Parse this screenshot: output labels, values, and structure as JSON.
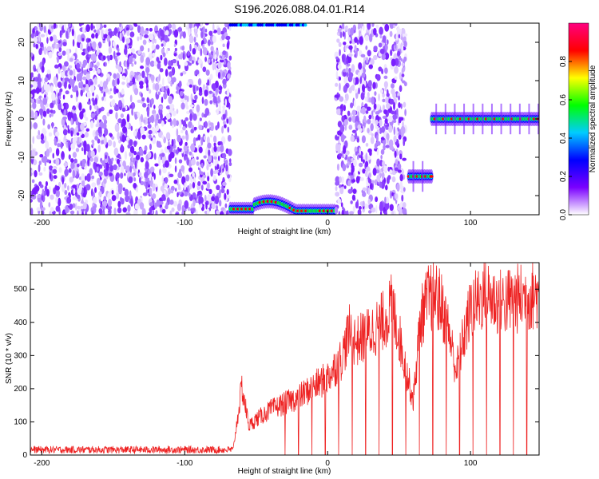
{
  "title": "S196.2026.088.04.01.R14",
  "chart_data": [
    {
      "type": "heatmap",
      "xlabel": "Height of straight line (km)",
      "ylabel": "Frequency (Hz)",
      "xlim": [
        -208,
        148
      ],
      "ylim": [
        -25,
        25
      ],
      "xticks": [
        -200,
        -100,
        0,
        100
      ],
      "yticks": [
        -20,
        -10,
        0,
        10,
        20
      ],
      "colorbar": {
        "label": "Normalized spectral amplitude",
        "range": [
          0,
          1
        ],
        "ticks": [
          "0.0",
          "0.2",
          "0.4",
          "0.6",
          "0.8"
        ],
        "colors": [
          "#ffffff",
          "#7a00ff",
          "#0000ff",
          "#00ccff",
          "#00ff00",
          "#ffff00",
          "#ff0000",
          "#ff0080"
        ]
      },
      "regions": [
        {
          "x": [
            -208,
            -68
          ],
          "kind": "noise"
        },
        {
          "x": [
            -68,
            6
          ],
          "kind": "signal-edge",
          "freq": -24
        },
        {
          "x": [
            6,
            55
          ],
          "kind": "noise"
        },
        {
          "x": [
            57,
            73
          ],
          "kind": "signal",
          "freq": -15
        },
        {
          "x": [
            73,
            148
          ],
          "kind": "signal",
          "freq": 0
        }
      ]
    },
    {
      "type": "line",
      "xlabel": "Height of straight line (km)",
      "ylabel": "SNR (10 * v/v)",
      "xlim": [
        -208,
        148
      ],
      "ylim": [
        0,
        580
      ],
      "xticks": [
        -200,
        -100,
        0,
        100
      ],
      "yticks": [
        0,
        100,
        200,
        300,
        400,
        500
      ],
      "series": [
        {
          "color": "#ee2222",
          "x": [
            -208,
            -180,
            -150,
            -120,
            -90,
            -66,
            -60,
            -55,
            -50,
            -40,
            -30,
            -20,
            -10,
            0,
            10,
            15,
            20,
            30,
            40,
            45,
            50,
            55,
            60,
            65,
            70,
            75,
            80,
            85,
            90,
            95,
            100,
            110,
            120,
            130,
            140,
            148
          ],
          "values": [
            15,
            15,
            15,
            15,
            15,
            20,
            210,
            90,
            110,
            140,
            160,
            180,
            210,
            240,
            300,
            380,
            350,
            380,
            420,
            460,
            370,
            260,
            170,
            420,
            480,
            500,
            460,
            380,
            260,
            360,
            450,
            500,
            470,
            480,
            490,
            500
          ]
        }
      ]
    }
  ]
}
